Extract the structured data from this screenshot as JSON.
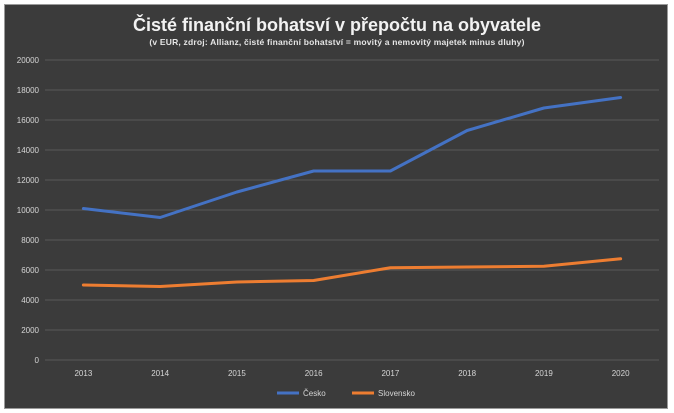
{
  "chart_data": {
    "type": "line",
    "title": "Čisté finanční bohatsví v přepočtu na obyvatele",
    "subtitle": "(v EUR, zdroj: Allianz, čisté finanční bohatství = movitý a nemovitý majetek minus dluhy)",
    "x": [
      "2013",
      "2014",
      "2015",
      "2016",
      "2017",
      "2018",
      "2019",
      "2020"
    ],
    "y_ticks": [
      "0",
      "2000",
      "4000",
      "6000",
      "8000",
      "10000",
      "12000",
      "14000",
      "16000",
      "18000",
      "20000"
    ],
    "ylim": [
      0,
      20000
    ],
    "grid": true,
    "legend_position": "bottom",
    "series": [
      {
        "name": "Česko",
        "color": "#4472c4",
        "values": [
          10100,
          9500,
          11200,
          12600,
          12600,
          15300,
          16800,
          17500
        ]
      },
      {
        "name": "Slovensko",
        "color": "#ed7d31",
        "values": [
          5000,
          4900,
          5200,
          5300,
          6150,
          6200,
          6250,
          6750
        ]
      }
    ]
  }
}
